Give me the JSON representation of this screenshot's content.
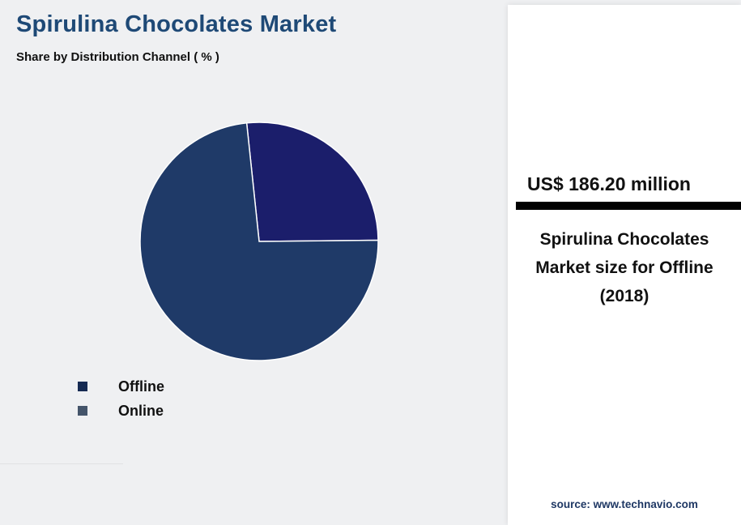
{
  "header": {
    "title": "Spirulina Chocolates Market",
    "subtitle": "Share by Distribution Channel ( % )",
    "title_color": "#1e4976"
  },
  "chart_data": {
    "type": "pie",
    "title": "Share by Distribution Channel ( % )",
    "start_angle": -96,
    "slices": [
      {
        "label": "Online",
        "value": 26.5,
        "color": "#1b1e6b"
      },
      {
        "label": "Offline",
        "value": 73.5,
        "color": "#1f3a68"
      }
    ],
    "legend": [
      {
        "label": "Offline",
        "color": "#152a52"
      },
      {
        "label": "Online",
        "color": "#44546a"
      }
    ],
    "legend_position": "bottom-left",
    "slice_border_color": "#ffffff"
  },
  "panel": {
    "headline": "US$ 186.20 million",
    "description": "Spirulina Chocolates Market size for Offline (2018)",
    "accent_bar_color": "#000000",
    "source": "source: www.technavio.com",
    "source_color": "#1f3864"
  }
}
